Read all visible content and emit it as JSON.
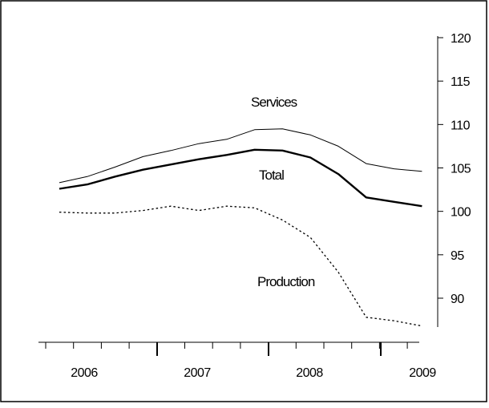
{
  "chart_data": {
    "type": "line",
    "title": "",
    "xlabel": "",
    "ylabel": "",
    "ylim": [
      86.5,
      120
    ],
    "y_axis_side": "right",
    "y_ticks": [
      90,
      95,
      100,
      105,
      110,
      115,
      120
    ],
    "y_tick_labels": [
      "90",
      "95",
      "100",
      "105",
      "110",
      "115",
      "120"
    ],
    "x_tick_labels": [
      "2006",
      "2007",
      "2008",
      "2009"
    ],
    "grid": false,
    "legend": "none (series labeled directly on chart)",
    "x": [
      "2005-Q4",
      "2006-Q1",
      "2006-Q2",
      "2006-Q3",
      "2006-Q4",
      "2007-Q1",
      "2007-Q2",
      "2007-Q3",
      "2007-Q4",
      "2008-Q1",
      "2008-Q2",
      "2008-Q3",
      "2008-Q4",
      "2009-Q1"
    ],
    "series": [
      {
        "name": "Services",
        "style": "thin-solid",
        "values": [
          103.3,
          104.0,
          105.1,
          106.3,
          107.0,
          107.8,
          108.3,
          109.4,
          109.5,
          108.8,
          107.5,
          105.5,
          104.9,
          104.6
        ]
      },
      {
        "name": "Total",
        "style": "thick-solid",
        "values": [
          102.6,
          103.1,
          104.0,
          104.8,
          105.4,
          106.0,
          106.5,
          107.1,
          107.0,
          106.2,
          104.3,
          101.6,
          101.1,
          100.6
        ]
      },
      {
        "name": "Production",
        "style": "dotted",
        "values": [
          99.9,
          99.8,
          99.8,
          100.1,
          100.6,
          100.1,
          100.6,
          100.4,
          99.0,
          97.0,
          93.0,
          87.8,
          87.4,
          86.8
        ]
      }
    ],
    "series_labels": [
      {
        "text": "Services",
        "series": "Services"
      },
      {
        "text": "Total",
        "series": "Total"
      },
      {
        "text": "Production",
        "series": "Production"
      }
    ],
    "colors": {
      "line": "#000000",
      "background": "#ffffff",
      "frame": "#000000"
    }
  }
}
